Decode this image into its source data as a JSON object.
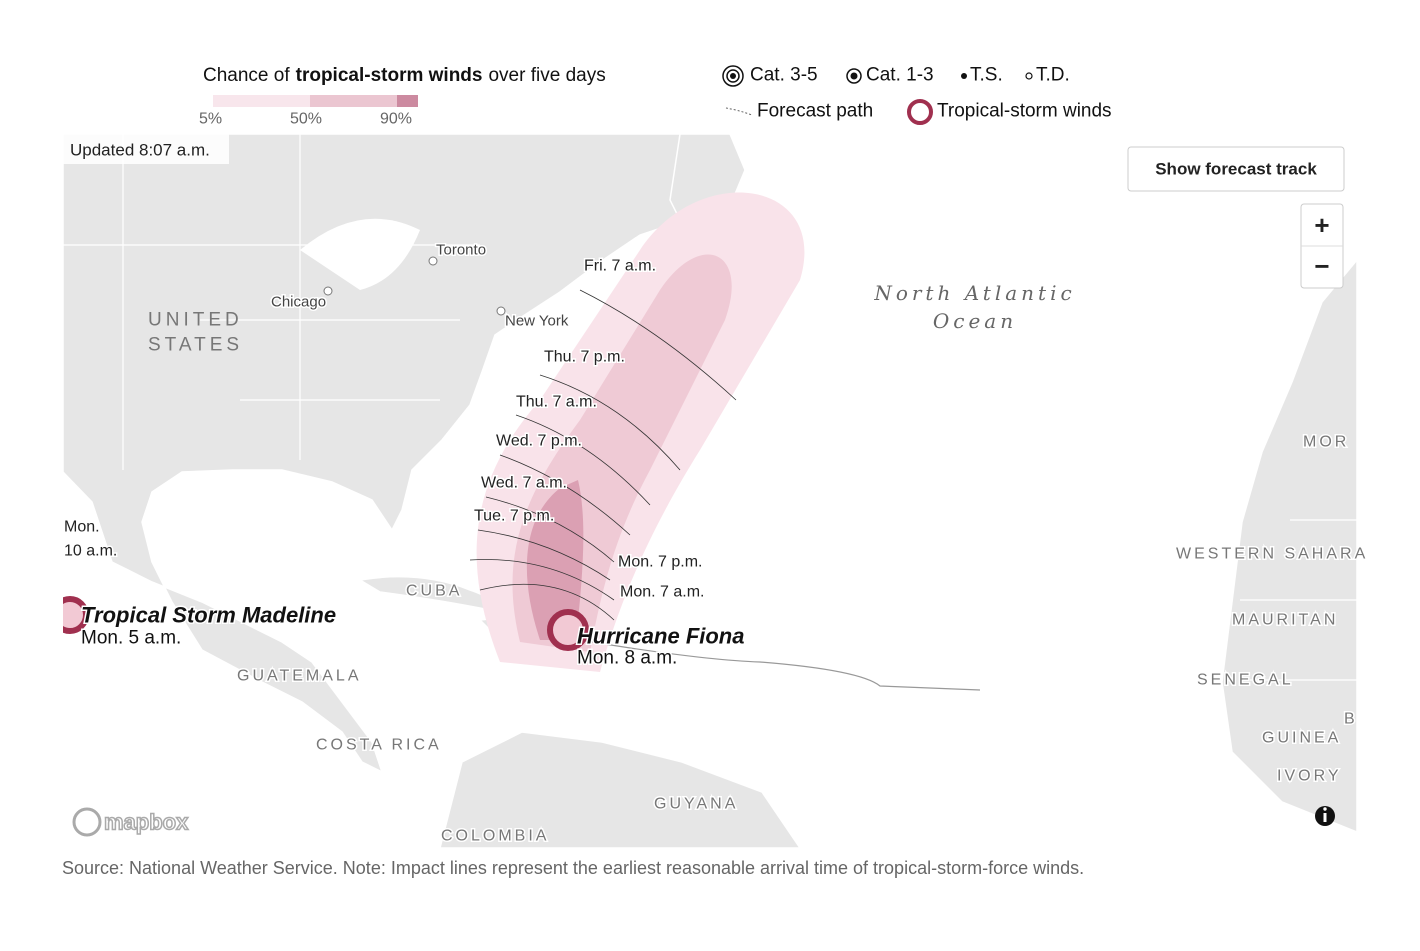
{
  "legend": {
    "title": [
      "Chance of",
      "tropical-storm winds",
      "over five days"
    ],
    "scale": [
      "5%",
      "50%",
      "90%"
    ],
    "symbols": [
      "Cat. 3-5",
      "Cat. 1-3",
      "T.S.",
      "T.D."
    ],
    "forecast_path": "Forecast path",
    "wind_ring": "Tropical-storm winds"
  },
  "map": {
    "updated": "Updated 8:07 a.m.",
    "controls": {
      "show_track": "Show forecast track",
      "zoom_in": "+",
      "zoom_out": "−"
    },
    "cities": [
      "Toronto",
      "Chicago",
      "New York"
    ],
    "regions": [
      [
        "UNITED",
        "STATES"
      ],
      [
        "North Atlantic",
        "Ocean"
      ],
      [
        "MOR"
      ],
      [
        "WESTERN SAHARA"
      ],
      [
        "MAURITAN"
      ],
      [
        "SENEGAL"
      ],
      [
        "GUINEA"
      ],
      [
        "IVORY"
      ],
      [
        "B"
      ],
      [
        "CUBA"
      ],
      [
        "GUATEMALA"
      ],
      [
        "COSTA RICA"
      ],
      [
        "GUYANA"
      ],
      [
        "COLOMBIA"
      ]
    ],
    "forecast_times": [
      "Fri. 7 a.m.",
      "Thu. 7 p.m.",
      "Thu. 7 a.m.",
      "Wed. 7 p.m.",
      "Wed. 7 a.m.",
      "Tue. 7 p.m.",
      "Mon. 7 p.m.",
      "Mon. 7 a.m."
    ],
    "madeline_arrival": [
      "Mon.",
      "10 a.m."
    ],
    "storms": [
      {
        "name": "Tropical Storm Madeline",
        "time": "Mon. 5 a.m."
      },
      {
        "name": "Hurricane Fiona",
        "time": "Mon. 8 a.m."
      }
    ],
    "attribution": "mapbox"
  },
  "source": "Source: National Weather Service. Note: Impact lines represent the earliest reasonable arrival time of tropical-storm-force winds."
}
